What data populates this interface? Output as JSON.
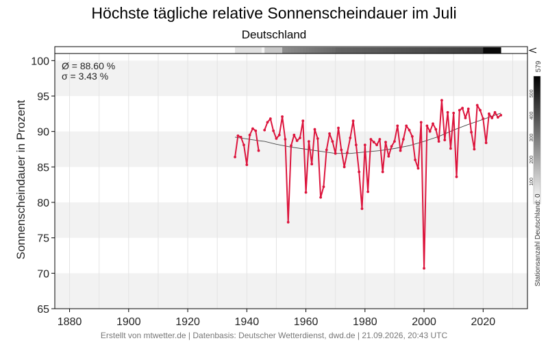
{
  "chart_data": {
    "type": "line",
    "title": "Höchste tägliche relative Sonnenscheindauer im Juli",
    "subtitle": "Deutschland",
    "ylabel": "Sonnenscheindauer in Prozent",
    "xlim": [
      1875,
      2035
    ],
    "ylim": [
      65,
      101
    ],
    "xticks": [
      1880,
      1900,
      1920,
      1940,
      1960,
      1980,
      2000,
      2020
    ],
    "yticks": [
      65,
      70,
      75,
      80,
      85,
      90,
      95,
      100
    ],
    "grid": true,
    "stats": {
      "mean_label": "Ø = 88.60 %",
      "std_label": "σ = 3.43 %"
    },
    "series": [
      {
        "color": "#dc143c",
        "points": [
          [
            1936,
            86.4
          ],
          [
            1937,
            89.4
          ],
          [
            1938,
            89.2
          ],
          [
            1939,
            88.1
          ],
          [
            1940,
            85.3
          ],
          [
            1941,
            89.5
          ],
          [
            1942,
            90.4
          ],
          [
            1943,
            90.1
          ],
          [
            1944,
            87.3
          ],
          [
            1946,
            90.2
          ],
          [
            1947,
            91.3
          ],
          [
            1948,
            91.8
          ],
          [
            1949,
            90.1
          ],
          [
            1950,
            89.0
          ],
          [
            1951,
            89.5
          ],
          [
            1952,
            92.1
          ],
          [
            1953,
            88.9
          ],
          [
            1954,
            77.2
          ],
          [
            1955,
            88.0
          ],
          [
            1956,
            89.5
          ],
          [
            1957,
            88.7
          ],
          [
            1958,
            89.1
          ],
          [
            1959,
            91.5
          ],
          [
            1960,
            81.4
          ],
          [
            1961,
            88.6
          ],
          [
            1962,
            85.4
          ],
          [
            1963,
            90.3
          ],
          [
            1964,
            89.0
          ],
          [
            1965,
            80.7
          ],
          [
            1966,
            82.2
          ],
          [
            1967,
            87.4
          ],
          [
            1968,
            89.7
          ],
          [
            1969,
            88.6
          ],
          [
            1970,
            86.9
          ],
          [
            1971,
            90.5
          ],
          [
            1972,
            87.4
          ],
          [
            1973,
            85.0
          ],
          [
            1974,
            87.0
          ],
          [
            1975,
            89.1
          ],
          [
            1976,
            91.5
          ],
          [
            1977,
            88.1
          ],
          [
            1978,
            84.3
          ],
          [
            1979,
            79.1
          ],
          [
            1980,
            88.1
          ],
          [
            1981,
            81.5
          ],
          [
            1982,
            88.9
          ],
          [
            1983,
            88.5
          ],
          [
            1984,
            88.1
          ],
          [
            1985,
            88.9
          ],
          [
            1986,
            84.3
          ],
          [
            1987,
            88.5
          ],
          [
            1988,
            86.5
          ],
          [
            1989,
            87.9
          ],
          [
            1990,
            88.6
          ],
          [
            1991,
            90.8
          ],
          [
            1992,
            87.3
          ],
          [
            1993,
            88.9
          ],
          [
            1994,
            90.8
          ],
          [
            1995,
            90.2
          ],
          [
            1996,
            89.3
          ],
          [
            1997,
            86.0
          ],
          [
            1998,
            84.8
          ],
          [
            1999,
            91.3
          ],
          [
            2000,
            70.7
          ],
          [
            2001,
            90.8
          ],
          [
            2002,
            90.0
          ],
          [
            2003,
            91.1
          ],
          [
            2004,
            90.3
          ],
          [
            2005,
            88.6
          ],
          [
            2006,
            94.4
          ],
          [
            2007,
            88.8
          ],
          [
            2008,
            92.7
          ],
          [
            2009,
            87.6
          ],
          [
            2010,
            92.6
          ],
          [
            2011,
            83.6
          ],
          [
            2012,
            93.0
          ],
          [
            2013,
            93.3
          ],
          [
            2014,
            91.9
          ],
          [
            2015,
            93.2
          ],
          [
            2016,
            89.9
          ],
          [
            2017,
            87.5
          ],
          [
            2018,
            93.7
          ],
          [
            2019,
            93.0
          ],
          [
            2020,
            91.8
          ],
          [
            2021,
            88.4
          ],
          [
            2022,
            92.5
          ],
          [
            2023,
            91.9
          ],
          [
            2024,
            92.7
          ],
          [
            2025,
            92.0
          ],
          [
            2026,
            92.3
          ]
        ]
      },
      {
        "color": "#444444",
        "points": [
          [
            1936,
            89.2
          ],
          [
            1944,
            88.7
          ],
          [
            1946,
            88.6
          ],
          [
            1950,
            88.2
          ],
          [
            1955,
            87.8
          ],
          [
            1960,
            87.5
          ],
          [
            1965,
            87.2
          ],
          [
            1970,
            86.9
          ],
          [
            1975,
            86.9
          ],
          [
            1980,
            87.1
          ],
          [
            1985,
            87.3
          ],
          [
            1990,
            87.6
          ],
          [
            1995,
            88.0
          ],
          [
            2000,
            88.6
          ],
          [
            2005,
            89.3
          ],
          [
            2010,
            90.2
          ],
          [
            2015,
            91.0
          ],
          [
            2020,
            91.7
          ],
          [
            2026,
            92.6
          ]
        ]
      }
    ],
    "station_bar": {
      "axis_label": "Stationsanzahl Deutschland: 0",
      "max_label": "579",
      "max": 579,
      "ticks": [
        100,
        200,
        300,
        400,
        500
      ]
    }
  },
  "footer": "Erstellt von mtwetter.de | Datenbasis: Deutscher Wetterdienst, dwd.de | 21.09.2026, 20:43 UTC"
}
